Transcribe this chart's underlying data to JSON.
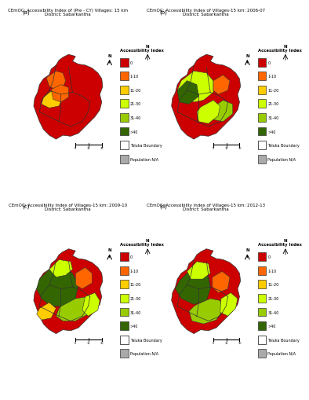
{
  "panels": [
    {
      "label": "a",
      "title_line1": "CEmOC: Accessibility Index of (Pre - CY) Villages: 15 km",
      "title_line2": "District: Sabarkantha"
    },
    {
      "label": "b",
      "title_line1": "CEmOC: Accessibility Index of Villages-15 km: 2006-07",
      "title_line2": "District: Sabarkantha"
    },
    {
      "label": "c",
      "title_line1": "CEmOC: Accessibility Index of Villages-15 km: 2009-10",
      "title_line2": "District: Sabarkantha"
    },
    {
      "label": "d",
      "title_line1": "CEmOC: Accessibility Index of Villages-15 km: 2012-13",
      "title_line2": "District: Sabarkantha"
    }
  ],
  "legend": {
    "title": "Accessibility Index",
    "items": [
      {
        "label": "0",
        "color": "#CC0000"
      },
      {
        "label": "1-10",
        "color": "#FF6600"
      },
      {
        "label": "11-20",
        "color": "#FFCC00"
      },
      {
        "label": "21-30",
        "color": "#CCFF00"
      },
      {
        "label": "31-40",
        "color": "#99CC00"
      },
      {
        "label": ">40",
        "color": "#336600"
      },
      {
        "label": "Taluka Boundary",
        "color": "#FFFFFF",
        "border": "#333333"
      },
      {
        "label": "Population N/A",
        "color": "#AAAAAA"
      }
    ]
  },
  "bg_color": "#FFFFFF",
  "panel_bg": "#DDDDDD",
  "border_color": "#333333",
  "title_fontsize": 5.5,
  "label_fontsize": 7,
  "legend_fontsize": 5.0
}
